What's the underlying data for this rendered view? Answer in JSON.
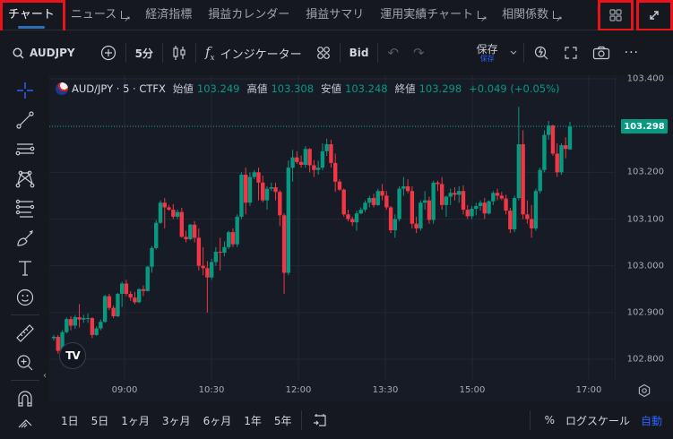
{
  "top_nav": {
    "tabs": [
      {
        "label": "チャート",
        "active": true,
        "external": false
      },
      {
        "label": "ニュース",
        "active": false,
        "external": true
      },
      {
        "label": "経済指標",
        "active": false,
        "external": false
      },
      {
        "label": "損益カレンダー",
        "active": false,
        "external": false
      },
      {
        "label": "損益サマリ",
        "active": false,
        "external": false
      },
      {
        "label": "運用実績チャート",
        "active": false,
        "external": true
      },
      {
        "label": "相関係数",
        "active": false,
        "external": true
      }
    ],
    "layout_icon": "grid-layout-icon",
    "expand_icon": "expand-icon"
  },
  "toolbar": {
    "symbol": "AUDJPY",
    "interval": "5分",
    "indicators_label": "インジケーター",
    "price_source": "Bid",
    "save_label": "保存",
    "save_sub_label": "保存"
  },
  "sidebar": {
    "tools": [
      "crosshair-icon",
      "trend-line-icon",
      "horizontal-lines-icon",
      "pattern-icon",
      "fib-icon",
      "brush-icon",
      "text-icon",
      "emoji-icon",
      "ruler-icon",
      "zoom-in-icon",
      "magnet-icon",
      "lock-drawing-icon"
    ]
  },
  "legend": {
    "symbol": "AUD/JPY · 5 · CTFX",
    "open_label": "始値",
    "open": "103.249",
    "high_label": "高値",
    "high": "103.308",
    "low_label": "安値",
    "low": "103.248",
    "close_label": "終値",
    "close": "103.298",
    "change": "+0.049 (+0.05%)"
  },
  "colors": {
    "up": "#089981",
    "down": "#f23645",
    "accent": "#2962ff",
    "highlight_box": "#e8141c"
  },
  "price_axis": {
    "labels": [
      "103.400",
      "103.200",
      "103.100",
      "103.000",
      "102.900",
      "102.800"
    ],
    "last_price": "103.298"
  },
  "time_axis": {
    "labels": [
      "09:00",
      "10:30",
      "12:00",
      "13:30",
      "15:00",
      "17:00"
    ]
  },
  "bottom_bar": {
    "ranges": [
      "1日",
      "5日",
      "1ヶ月",
      "3ヶ月",
      "6ヶ月",
      "1年",
      "5年"
    ],
    "percent_label": "%",
    "log_label": "ログスケール",
    "auto_label": "自動"
  },
  "chart_data": {
    "type": "candlestick",
    "title": "AUD/JPY · 5 · CTFX",
    "ylim": [
      102.76,
      103.42
    ],
    "y_ticks": [
      102.8,
      102.9,
      103.0,
      103.1,
      103.2,
      103.3,
      103.4
    ],
    "x_ticks": [
      "09:00",
      "10:30",
      "12:00",
      "13:30",
      "15:00",
      "17:00"
    ],
    "candles": [
      [
        102.845,
        102.852,
        102.84,
        102.848
      ],
      [
        102.848,
        102.852,
        102.812,
        102.818
      ],
      [
        102.818,
        102.862,
        102.815,
        102.858
      ],
      [
        102.858,
        102.89,
        102.855,
        102.886
      ],
      [
        102.886,
        102.892,
        102.862,
        102.872
      ],
      [
        102.872,
        102.895,
        102.865,
        102.89
      ],
      [
        102.89,
        102.918,
        102.868,
        102.885
      ],
      [
        102.885,
        102.895,
        102.878,
        102.888
      ],
      [
        102.888,
        102.898,
        102.878,
        102.888
      ],
      [
        102.888,
        102.89,
        102.845,
        102.852
      ],
      [
        102.852,
        102.87,
        102.85,
        102.866
      ],
      [
        102.866,
        102.885,
        102.862,
        102.88
      ],
      [
        102.88,
        102.938,
        102.878,
        102.935
      ],
      [
        102.935,
        102.94,
        102.905,
        102.91
      ],
      [
        102.91,
        102.915,
        102.888,
        102.892
      ],
      [
        102.892,
        102.942,
        102.89,
        102.94
      ],
      [
        102.94,
        102.966,
        102.912,
        102.962
      ],
      [
        102.962,
        102.97,
        102.935,
        102.94
      ],
      [
        102.94,
        102.946,
        102.925,
        102.932
      ],
      [
        102.932,
        102.944,
        102.918,
        102.922
      ],
      [
        102.922,
        102.952,
        102.92,
        102.95
      ],
      [
        102.95,
        102.958,
        102.935,
        102.946
      ],
      [
        102.946,
        103.0,
        102.945,
        102.998
      ],
      [
        102.998,
        103.042,
        102.985,
        103.038
      ],
      [
        103.038,
        103.098,
        103.035,
        103.092
      ],
      [
        103.092,
        103.14,
        103.09,
        103.135
      ],
      [
        103.135,
        103.145,
        103.08,
        103.125
      ],
      [
        103.125,
        103.13,
        103.118,
        103.12
      ],
      [
        103.12,
        103.132,
        103.1,
        103.105
      ],
      [
        103.105,
        103.12,
        103.1,
        103.115
      ],
      [
        103.115,
        103.124,
        103.06,
        103.062
      ],
      [
        103.062,
        103.075,
        103.05,
        103.057
      ],
      [
        103.057,
        103.09,
        103.055,
        103.088
      ],
      [
        103.088,
        103.096,
        103.05,
        103.06
      ],
      [
        103.06,
        103.08,
        102.99,
        103.0
      ],
      [
        103.0,
        103.04,
        102.98,
        102.995
      ],
      [
        102.995,
        103.01,
        102.9,
        102.975
      ],
      [
        102.975,
        103.015,
        102.97,
        103.008
      ],
      [
        103.008,
        103.04,
        103.0,
        103.03
      ],
      [
        103.03,
        103.06,
        102.99,
        103.028
      ],
      [
        103.028,
        103.052,
        103.02,
        103.04
      ],
      [
        103.04,
        103.075,
        103.036,
        103.072
      ],
      [
        103.072,
        103.08,
        103.04,
        103.046
      ],
      [
        103.046,
        103.11,
        103.04,
        103.105
      ],
      [
        103.105,
        103.2,
        103.1,
        103.195
      ],
      [
        103.195,
        103.21,
        103.11,
        103.135
      ],
      [
        103.135,
        103.2,
        103.128,
        103.19
      ],
      [
        103.19,
        103.205,
        103.185,
        103.2
      ],
      [
        103.2,
        103.21,
        103.14,
        103.178
      ],
      [
        103.178,
        103.193,
        103.136,
        103.14
      ],
      [
        103.14,
        103.17,
        103.12,
        103.165
      ],
      [
        103.165,
        103.178,
        103.16,
        103.168
      ],
      [
        103.168,
        103.178,
        103.14,
        103.158
      ],
      [
        103.158,
        103.162,
        103.085,
        103.108
      ],
      [
        103.108,
        103.112,
        102.94,
        102.985
      ],
      [
        102.985,
        103.225,
        102.98,
        103.21
      ],
      [
        103.21,
        103.248,
        103.18,
        103.232
      ],
      [
        103.232,
        103.245,
        103.218,
        103.222
      ],
      [
        103.222,
        103.236,
        103.21,
        103.216
      ],
      [
        103.216,
        103.256,
        103.21,
        103.25
      ],
      [
        103.25,
        103.252,
        103.2,
        103.215
      ],
      [
        103.215,
        103.226,
        103.19,
        103.205
      ],
      [
        103.205,
        103.225,
        103.195,
        103.21
      ],
      [
        103.21,
        103.262,
        103.205,
        103.245
      ],
      [
        103.245,
        103.272,
        103.235,
        103.26
      ],
      [
        103.26,
        103.27,
        103.21,
        103.22
      ],
      [
        103.22,
        103.24,
        103.158,
        103.18
      ],
      [
        103.18,
        103.185,
        103.16,
        103.163
      ],
      [
        103.163,
        103.165,
        103.105,
        103.11
      ],
      [
        103.11,
        103.12,
        103.095,
        103.1
      ],
      [
        103.1,
        103.105,
        103.085,
        103.093
      ],
      [
        103.093,
        103.118,
        103.075,
        103.112
      ],
      [
        103.112,
        103.125,
        103.11,
        103.12
      ],
      [
        103.12,
        103.14,
        103.115,
        103.135
      ],
      [
        103.135,
        103.15,
        103.125,
        103.145
      ],
      [
        103.145,
        103.154,
        103.125,
        103.13
      ],
      [
        103.13,
        103.165,
        103.128,
        103.16
      ],
      [
        103.16,
        103.175,
        103.14,
        103.15
      ],
      [
        103.15,
        103.16,
        103.12,
        103.125
      ],
      [
        103.125,
        103.128,
        103.07,
        103.076
      ],
      [
        103.076,
        103.11,
        103.06,
        103.1
      ],
      [
        103.1,
        103.17,
        103.095,
        103.165
      ],
      [
        103.165,
        103.19,
        103.15,
        103.17
      ],
      [
        103.17,
        103.185,
        103.155,
        103.16
      ],
      [
        103.16,
        103.17,
        103.08,
        103.09
      ],
      [
        103.09,
        103.105,
        103.07,
        103.08
      ],
      [
        103.08,
        103.14,
        103.075,
        103.135
      ],
      [
        103.135,
        103.16,
        103.12,
        103.14
      ],
      [
        103.14,
        103.148,
        103.09,
        103.098
      ],
      [
        103.098,
        103.182,
        103.09,
        103.178
      ],
      [
        103.178,
        103.182,
        103.16,
        103.175
      ],
      [
        103.175,
        103.19,
        103.12,
        103.13
      ],
      [
        103.13,
        103.15,
        103.105,
        103.148
      ],
      [
        103.148,
        103.165,
        103.13,
        103.156
      ],
      [
        103.156,
        103.168,
        103.14,
        103.152
      ],
      [
        103.152,
        103.17,
        103.135,
        103.16
      ],
      [
        103.16,
        103.172,
        103.11,
        103.12
      ],
      [
        103.12,
        103.13,
        103.1,
        103.106
      ],
      [
        103.106,
        103.128,
        103.1,
        103.122
      ],
      [
        103.122,
        103.135,
        103.108,
        103.128
      ],
      [
        103.128,
        103.14,
        103.118,
        103.135
      ],
      [
        103.135,
        103.145,
        103.1,
        103.112
      ],
      [
        103.112,
        103.14,
        103.11,
        103.138
      ],
      [
        103.138,
        103.16,
        103.13,
        103.156
      ],
      [
        103.156,
        103.165,
        103.14,
        103.15
      ],
      [
        103.15,
        103.158,
        103.14,
        103.144
      ],
      [
        103.144,
        103.152,
        103.11,
        103.118
      ],
      [
        103.118,
        103.124,
        103.07,
        103.078
      ],
      [
        103.078,
        103.15,
        103.072,
        103.145
      ],
      [
        103.145,
        103.34,
        103.14,
        103.26
      ],
      [
        103.26,
        103.29,
        103.1,
        103.11
      ],
      [
        103.11,
        103.14,
        103.09,
        103.1
      ],
      [
        103.1,
        103.13,
        103.06,
        103.08
      ],
      [
        103.08,
        103.165,
        103.075,
        103.16
      ],
      [
        103.16,
        103.21,
        103.155,
        103.205
      ],
      [
        103.205,
        103.29,
        103.2,
        103.28
      ],
      [
        103.28,
        103.31,
        103.27,
        103.3
      ],
      [
        103.3,
        103.302,
        103.235,
        103.24
      ],
      [
        103.24,
        103.262,
        103.19,
        103.2
      ],
      [
        103.2,
        103.262,
        103.195,
        103.258
      ],
      [
        103.258,
        103.275,
        103.23,
        103.25
      ],
      [
        103.249,
        103.308,
        103.248,
        103.298
      ]
    ],
    "last_price": 103.298
  }
}
